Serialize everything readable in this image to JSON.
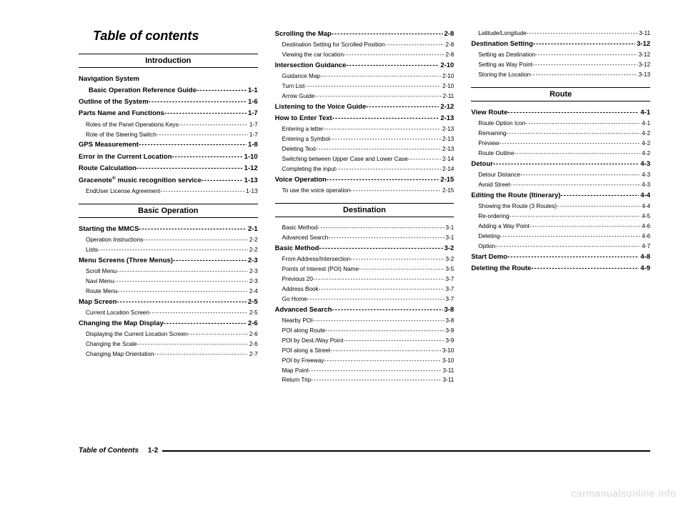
{
  "title": "Table of contents",
  "footer": {
    "label": "Table of Contents",
    "page": "1-2"
  },
  "watermark": "carmanualsonline.info",
  "columns": [
    {
      "sections": [
        {
          "header": "Introduction",
          "items": [
            {
              "type": "bold",
              "label": "Navigation System",
              "page": ""
            },
            {
              "type": "bold",
              "label": "Basic Operation Reference Guide",
              "page": "1-1",
              "indent": true
            },
            {
              "type": "bold",
              "label": "Outline of the System",
              "page": "1-6"
            },
            {
              "type": "bold",
              "label": "Parts Name and Functions",
              "page": "1-7"
            },
            {
              "type": "sub",
              "label": "Roles of the Panel Operations Keys",
              "page": "1-7"
            },
            {
              "type": "sub",
              "label": "Role of the Steering Switch",
              "page": "1-7"
            },
            {
              "type": "bold",
              "label": "GPS Measurement",
              "page": "1-8"
            },
            {
              "type": "bold",
              "label": "Error in the Current Location",
              "page": "1-10"
            },
            {
              "type": "bold",
              "label": "Route Calculation",
              "page": "1-12"
            },
            {
              "type": "bold",
              "label": "Gracenote® music recognition service",
              "page": "1-13"
            },
            {
              "type": "sub",
              "label": "EndUser License Agreement",
              "page": "1-13"
            }
          ]
        },
        {
          "header": "Basic Operation",
          "items": [
            {
              "type": "bold",
              "label": "Starting the MMCS",
              "page": "2-1"
            },
            {
              "type": "sub",
              "label": "Operation Instructions",
              "page": "2-2"
            },
            {
              "type": "sub",
              "label": "Lists",
              "page": "2-2"
            },
            {
              "type": "bold",
              "label": "Menu Screens (Three Menus)",
              "page": "2-3"
            },
            {
              "type": "sub",
              "label": "Scroll Menu",
              "page": "2-3"
            },
            {
              "type": "sub",
              "label": "Navi Menu",
              "page": "2-3"
            },
            {
              "type": "sub",
              "label": "Route Menu",
              "page": "2-4"
            },
            {
              "type": "bold",
              "label": "Map Screen",
              "page": "2-5"
            },
            {
              "type": "sub",
              "label": "Current Location Screen",
              "page": "2-5"
            },
            {
              "type": "bold",
              "label": "Changing the Map Display",
              "page": "2-6"
            },
            {
              "type": "sub",
              "label": "Displaying the Current Location Screen",
              "page": "2-6"
            },
            {
              "type": "sub",
              "label": "Changing the Scale",
              "page": "2-6"
            },
            {
              "type": "sub",
              "label": "Changing Map Orientation",
              "page": "2-7"
            }
          ]
        }
      ]
    },
    {
      "sections": [
        {
          "header": null,
          "items": [
            {
              "type": "bold",
              "label": "Scrolling the Map",
              "page": "2-8"
            },
            {
              "type": "sub",
              "label": "Destination Setting for Scrolled Position",
              "page": "2-8"
            },
            {
              "type": "sub",
              "label": "Viewing the car location",
              "page": "2-8"
            },
            {
              "type": "bold",
              "label": "Intersection Guidance",
              "page": "2-10"
            },
            {
              "type": "sub",
              "label": "Guidance Map",
              "page": "2-10"
            },
            {
              "type": "sub",
              "label": "Turn List",
              "page": "2-10"
            },
            {
              "type": "sub",
              "label": "Arrow Guide",
              "page": "2-11"
            },
            {
              "type": "bold",
              "label": "Listening to the Voice Guide",
              "page": "2-12"
            },
            {
              "type": "bold",
              "label": "How to Enter Text",
              "page": "2-13"
            },
            {
              "type": "sub",
              "label": "Entering a letter",
              "page": "2-13"
            },
            {
              "type": "sub",
              "label": "Entering a Symbol",
              "page": "2-13"
            },
            {
              "type": "sub",
              "label": "Deleting Text",
              "page": "2-13"
            },
            {
              "type": "sub",
              "label": "Switching between Upper Case and Lower Case",
              "page": "2-14"
            },
            {
              "type": "sub",
              "label": "Completing the input",
              "page": "2-14"
            },
            {
              "type": "bold",
              "label": "Voice Operation",
              "page": "2-15"
            },
            {
              "type": "sub",
              "label": "To use the voice operation",
              "page": "2-15"
            }
          ]
        },
        {
          "header": "Destination",
          "items": [
            {
              "type": "sub",
              "label": "Basic Method",
              "page": "3-1"
            },
            {
              "type": "sub",
              "label": "Advanced Search",
              "page": "3-1"
            },
            {
              "type": "bold",
              "label": "Basic Method",
              "page": "3-2"
            },
            {
              "type": "sub",
              "label": "From Address/Intersection",
              "page": "3-2"
            },
            {
              "type": "sub",
              "label": "Points of Interest (POI) Name",
              "page": "3-5"
            },
            {
              "type": "sub",
              "label": "Previous 20",
              "page": "3-7"
            },
            {
              "type": "sub",
              "label": "Address Book",
              "page": "3-7"
            },
            {
              "type": "sub",
              "label": "Go Home",
              "page": "3-7"
            },
            {
              "type": "bold",
              "label": "Advanced Search",
              "page": "3-8"
            },
            {
              "type": "sub",
              "label": "Nearby POI",
              "page": "3-8"
            },
            {
              "type": "sub",
              "label": "POI along Route",
              "page": "3-9"
            },
            {
              "type": "sub",
              "label": "POI by Dest./Way Point",
              "page": "3-9"
            },
            {
              "type": "sub",
              "label": "POI along a Street",
              "page": "3-10"
            },
            {
              "type": "sub",
              "label": "POI by Freeway",
              "page": "3-10"
            },
            {
              "type": "sub",
              "label": "Map Point",
              "page": "3-11"
            },
            {
              "type": "sub",
              "label": "Return Trip",
              "page": "3-11"
            }
          ]
        }
      ]
    },
    {
      "sections": [
        {
          "header": null,
          "items": [
            {
              "type": "sub",
              "label": "Latitude/Longitude",
              "page": "3-11"
            },
            {
              "type": "bold",
              "label": "Destination Setting",
              "page": "3-12"
            },
            {
              "type": "sub",
              "label": "Setting as Destination",
              "page": "3-12"
            },
            {
              "type": "sub",
              "label": "Setting as Way Point",
              "page": "3-12"
            },
            {
              "type": "sub",
              "label": "Storing the Location",
              "page": "3-13"
            }
          ]
        },
        {
          "header": "Route",
          "items": [
            {
              "type": "bold",
              "label": "View Route",
              "page": "4-1"
            },
            {
              "type": "sub",
              "label": "Route Option Icon",
              "page": "4-1"
            },
            {
              "type": "sub",
              "label": "Remaining",
              "page": "4-2"
            },
            {
              "type": "sub",
              "label": "Preview",
              "page": "4-2"
            },
            {
              "type": "sub",
              "label": "Route Outline",
              "page": "4-2"
            },
            {
              "type": "bold",
              "label": "Detour",
              "page": "4-3"
            },
            {
              "type": "sub",
              "label": "Detour Distance",
              "page": "4-3"
            },
            {
              "type": "sub",
              "label": "Avoid Street",
              "page": "4-3"
            },
            {
              "type": "bold",
              "label": "Editing the Route (Itinerary)",
              "page": "4-4"
            },
            {
              "type": "sub",
              "label": "Showing the Route (3 Routes)",
              "page": "4-4"
            },
            {
              "type": "sub",
              "label": "Re-ordering",
              "page": "4-5"
            },
            {
              "type": "sub",
              "label": "Adding a Way Point",
              "page": "4-6"
            },
            {
              "type": "sub",
              "label": "Deleting",
              "page": "4-6"
            },
            {
              "type": "sub",
              "label": "Option",
              "page": "4-7"
            },
            {
              "type": "bold",
              "label": "Start Demo",
              "page": "4-8"
            },
            {
              "type": "bold",
              "label": "Deleting the Route",
              "page": "4-9"
            }
          ]
        }
      ]
    }
  ]
}
